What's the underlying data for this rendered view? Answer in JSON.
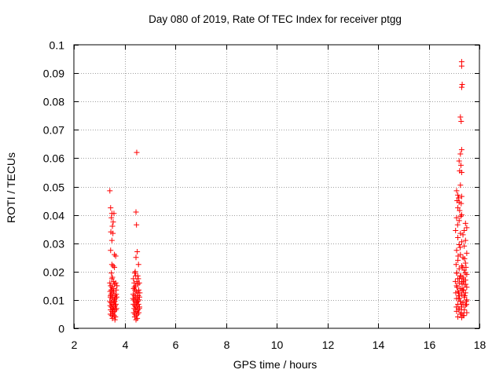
{
  "chart_data": {
    "type": "scatter",
    "title": "Day 080 of 2019, Rate Of TEC Index for receiver ptgg",
    "xlabel": "GPS time / hours",
    "ylabel": "ROTI / TECUs",
    "xlim": [
      2,
      18
    ],
    "ylim": [
      0,
      0.1
    ],
    "x_ticks": [
      2,
      4,
      6,
      8,
      10,
      12,
      14,
      16,
      18
    ],
    "x_tick_labels": [
      "2",
      "4",
      "6",
      "8",
      "10",
      "12",
      "14",
      "16",
      "18"
    ],
    "y_ticks": [
      0,
      0.01,
      0.02,
      0.03,
      0.04,
      0.05,
      0.06,
      0.07,
      0.08,
      0.09,
      0.1
    ],
    "y_tick_labels": [
      "0",
      "0.01",
      "0.02",
      "0.03",
      "0.04",
      "0.05",
      "0.06",
      "0.07",
      "0.08",
      "0.09",
      "0.1"
    ],
    "grid": true,
    "marker": "+",
    "color": "#ff0000",
    "series": [
      {
        "points": [
          [
            3.42,
            0.0485
          ],
          [
            3.45,
            0.0425
          ],
          [
            3.5,
            0.0405
          ],
          [
            3.48,
            0.039
          ],
          [
            3.55,
            0.0375
          ],
          [
            3.58,
            0.0405
          ],
          [
            3.52,
            0.036
          ],
          [
            3.46,
            0.034
          ],
          [
            3.5,
            0.031
          ],
          [
            3.54,
            0.0335
          ],
          [
            3.45,
            0.0275
          ],
          [
            3.6,
            0.026
          ],
          [
            3.65,
            0.0255
          ],
          [
            3.5,
            0.0225
          ],
          [
            3.55,
            0.022
          ],
          [
            3.6,
            0.0215
          ],
          [
            3.48,
            0.0195
          ],
          [
            3.52,
            0.018
          ],
          [
            3.42,
            0.016
          ],
          [
            3.45,
            0.015
          ],
          [
            3.5,
            0.0145
          ],
          [
            3.55,
            0.014
          ],
          [
            3.6,
            0.0155
          ],
          [
            3.65,
            0.016
          ],
          [
            3.7,
            0.015
          ],
          [
            3.43,
            0.013
          ],
          [
            3.47,
            0.012
          ],
          [
            3.52,
            0.0125
          ],
          [
            3.57,
            0.013
          ],
          [
            3.62,
            0.0115
          ],
          [
            3.67,
            0.012
          ],
          [
            3.44,
            0.011
          ],
          [
            3.49,
            0.0105
          ],
          [
            3.54,
            0.011
          ],
          [
            3.59,
            0.01
          ],
          [
            3.64,
            0.0105
          ],
          [
            3.69,
            0.011
          ],
          [
            3.42,
            0.0095
          ],
          [
            3.46,
            0.009
          ],
          [
            3.51,
            0.0085
          ],
          [
            3.56,
            0.009
          ],
          [
            3.61,
            0.0095
          ],
          [
            3.66,
            0.0085
          ],
          [
            3.43,
            0.008
          ],
          [
            3.48,
            0.0075
          ],
          [
            3.53,
            0.007
          ],
          [
            3.58,
            0.0075
          ],
          [
            3.63,
            0.008
          ],
          [
            3.68,
            0.007
          ],
          [
            3.45,
            0.0065
          ],
          [
            3.5,
            0.006
          ],
          [
            3.55,
            0.0055
          ],
          [
            3.6,
            0.006
          ],
          [
            3.65,
            0.0065
          ],
          [
            3.44,
            0.005
          ],
          [
            3.49,
            0.0045
          ],
          [
            3.54,
            0.005
          ],
          [
            3.59,
            0.0045
          ],
          [
            3.64,
            0.004
          ],
          [
            3.52,
            0.0035
          ],
          [
            3.62,
            0.003
          ],
          [
            3.47,
            0.0135
          ],
          [
            3.57,
            0.0165
          ],
          [
            3.67,
            0.0135
          ],
          [
            3.5,
            0.0175
          ],
          [
            3.6,
            0.0095
          ],
          [
            3.45,
            0.0115
          ],
          [
            3.55,
            0.0065
          ],
          [
            4.48,
            0.062
          ],
          [
            4.45,
            0.041
          ],
          [
            4.47,
            0.0365
          ],
          [
            4.5,
            0.027
          ],
          [
            4.45,
            0.025
          ],
          [
            4.55,
            0.0225
          ],
          [
            4.42,
            0.02
          ],
          [
            4.52,
            0.0185
          ],
          [
            4.4,
            0.0195
          ],
          [
            4.35,
            0.0175
          ],
          [
            4.38,
            0.016
          ],
          [
            4.43,
            0.015
          ],
          [
            4.48,
            0.0165
          ],
          [
            4.53,
            0.0155
          ],
          [
            4.58,
            0.016
          ],
          [
            4.36,
            0.014
          ],
          [
            4.41,
            0.0135
          ],
          [
            4.46,
            0.013
          ],
          [
            4.51,
            0.0125
          ],
          [
            4.56,
            0.0135
          ],
          [
            4.34,
            0.012
          ],
          [
            4.39,
            0.0115
          ],
          [
            4.44,
            0.011
          ],
          [
            4.49,
            0.0105
          ],
          [
            4.54,
            0.0115
          ],
          [
            4.59,
            0.011
          ],
          [
            4.37,
            0.01
          ],
          [
            4.42,
            0.0095
          ],
          [
            4.47,
            0.009
          ],
          [
            4.52,
            0.0095
          ],
          [
            4.57,
            0.01
          ],
          [
            4.35,
            0.0085
          ],
          [
            4.4,
            0.008
          ],
          [
            4.45,
            0.0075
          ],
          [
            4.5,
            0.008
          ],
          [
            4.55,
            0.0085
          ],
          [
            4.38,
            0.007
          ],
          [
            4.43,
            0.0065
          ],
          [
            4.48,
            0.006
          ],
          [
            4.53,
            0.0065
          ],
          [
            4.58,
            0.007
          ],
          [
            4.36,
            0.0055
          ],
          [
            4.41,
            0.005
          ],
          [
            4.46,
            0.0045
          ],
          [
            4.51,
            0.005
          ],
          [
            4.56,
            0.0055
          ],
          [
            4.4,
            0.004
          ],
          [
            4.5,
            0.0035
          ],
          [
            4.45,
            0.003
          ],
          [
            4.6,
            0.0125
          ],
          [
            4.33,
            0.0105
          ],
          [
            4.44,
            0.0185
          ],
          [
            4.54,
            0.0175
          ],
          [
            4.39,
            0.0145
          ],
          [
            4.49,
            0.0095
          ],
          [
            4.59,
            0.0075
          ],
          [
            17.3,
            0.094
          ],
          [
            17.3,
            0.0925
          ],
          [
            17.32,
            0.086
          ],
          [
            17.3,
            0.085
          ],
          [
            17.25,
            0.0745
          ],
          [
            17.28,
            0.073
          ],
          [
            17.3,
            0.063
          ],
          [
            17.25,
            0.0615
          ],
          [
            17.2,
            0.059
          ],
          [
            17.27,
            0.0575
          ],
          [
            17.22,
            0.0555
          ],
          [
            17.3,
            0.055
          ],
          [
            17.25,
            0.0505
          ],
          [
            17.1,
            0.0485
          ],
          [
            17.15,
            0.047
          ],
          [
            17.3,
            0.0465
          ],
          [
            17.18,
            0.046
          ],
          [
            17.12,
            0.045
          ],
          [
            17.2,
            0.0445
          ],
          [
            17.28,
            0.044
          ],
          [
            17.15,
            0.0425
          ],
          [
            17.22,
            0.0415
          ],
          [
            17.3,
            0.04
          ],
          [
            17.1,
            0.039
          ],
          [
            17.2,
            0.038
          ],
          [
            17.45,
            0.037
          ],
          [
            17.5,
            0.0355
          ],
          [
            17.4,
            0.0345
          ],
          [
            17.25,
            0.0335
          ],
          [
            17.35,
            0.033
          ],
          [
            17.15,
            0.032
          ],
          [
            17.45,
            0.031
          ],
          [
            17.3,
            0.0305
          ],
          [
            17.2,
            0.0295
          ],
          [
            17.4,
            0.029
          ],
          [
            17.1,
            0.0275
          ],
          [
            17.5,
            0.0265
          ],
          [
            17.25,
            0.026
          ],
          [
            17.35,
            0.025
          ],
          [
            17.15,
            0.024
          ],
          [
            17.45,
            0.023
          ],
          [
            17.3,
            0.022
          ],
          [
            17.2,
            0.021
          ],
          [
            17.4,
            0.0205
          ],
          [
            17.1,
            0.0195
          ],
          [
            17.5,
            0.019
          ],
          [
            17.25,
            0.0185
          ],
          [
            17.35,
            0.018
          ],
          [
            17.15,
            0.0175
          ],
          [
            17.45,
            0.017
          ],
          [
            17.3,
            0.0165
          ],
          [
            17.2,
            0.016
          ],
          [
            17.4,
            0.0155
          ],
          [
            17.1,
            0.015
          ],
          [
            17.5,
            0.0145
          ],
          [
            17.25,
            0.014
          ],
          [
            17.35,
            0.0135
          ],
          [
            17.15,
            0.013
          ],
          [
            17.45,
            0.0125
          ],
          [
            17.3,
            0.012
          ],
          [
            17.2,
            0.0115
          ],
          [
            17.4,
            0.011
          ],
          [
            17.1,
            0.0105
          ],
          [
            17.5,
            0.01
          ],
          [
            17.25,
            0.0095
          ],
          [
            17.35,
            0.009
          ],
          [
            17.15,
            0.0085
          ],
          [
            17.45,
            0.008
          ],
          [
            17.3,
            0.0075
          ],
          [
            17.2,
            0.007
          ],
          [
            17.4,
            0.0065
          ],
          [
            17.1,
            0.006
          ],
          [
            17.5,
            0.0055
          ],
          [
            17.25,
            0.005
          ],
          [
            17.35,
            0.0045
          ],
          [
            17.15,
            0.004
          ],
          [
            17.3,
            0.0038
          ],
          [
            17.05,
            0.0165
          ],
          [
            17.12,
            0.0145
          ],
          [
            17.18,
            0.0125
          ],
          [
            17.22,
            0.0105
          ],
          [
            17.28,
            0.0085
          ],
          [
            17.32,
            0.0155
          ],
          [
            17.38,
            0.0135
          ],
          [
            17.42,
            0.0115
          ],
          [
            17.48,
            0.0095
          ],
          [
            17.08,
            0.0225
          ],
          [
            17.16,
            0.0255
          ],
          [
            17.24,
            0.0285
          ],
          [
            17.34,
            0.0215
          ],
          [
            17.44,
            0.0195
          ],
          [
            17.06,
            0.0345
          ],
          [
            17.14,
            0.0365
          ],
          [
            17.26,
            0.0395
          ],
          [
            17.36,
            0.0175
          ],
          [
            17.46,
            0.0155
          ],
          [
            17.09,
            0.0075
          ],
          [
            17.19,
            0.0065
          ],
          [
            17.29,
            0.0055
          ],
          [
            17.39,
            0.0045
          ],
          [
            17.49,
            0.0085
          ],
          [
            17.11,
            0.0195
          ],
          [
            17.21,
            0.0175
          ],
          [
            17.31,
            0.0135
          ],
          [
            17.41,
            0.0245
          ],
          [
            17.07,
            0.0125
          ],
          [
            17.17,
            0.0105
          ],
          [
            17.27,
            0.0185
          ],
          [
            17.37,
            0.0165
          ],
          [
            17.47,
            0.0215
          ]
        ]
      }
    ]
  }
}
